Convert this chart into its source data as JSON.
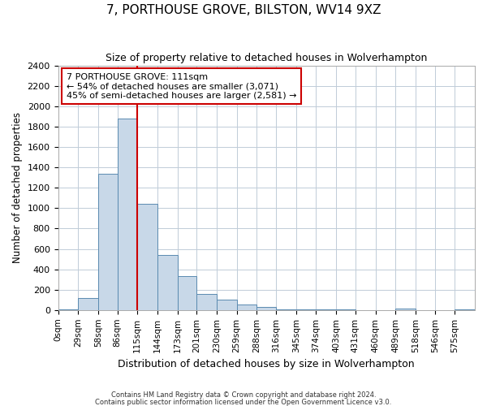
{
  "title": "7, PORTHOUSE GROVE, BILSTON, WV14 9XZ",
  "subtitle": "Size of property relative to detached houses in Wolverhampton",
  "xlabel": "Distribution of detached houses by size in Wolverhampton",
  "ylabel": "Number of detached properties",
  "bin_labels": [
    "0sqm",
    "29sqm",
    "58sqm",
    "86sqm",
    "115sqm",
    "144sqm",
    "173sqm",
    "201sqm",
    "230sqm",
    "259sqm",
    "288sqm",
    "316sqm",
    "345sqm",
    "374sqm",
    "403sqm",
    "431sqm",
    "460sqm",
    "489sqm",
    "518sqm",
    "546sqm",
    "575sqm"
  ],
  "bin_edges": [
    0,
    29,
    58,
    86,
    115,
    144,
    173,
    201,
    230,
    259,
    288,
    316,
    345,
    374,
    403,
    431,
    460,
    489,
    518,
    546,
    575
  ],
  "bar_heights": [
    10,
    120,
    1340,
    1880,
    1040,
    540,
    335,
    160,
    100,
    55,
    30,
    10,
    10,
    5,
    5,
    2,
    2,
    15,
    2,
    2,
    5
  ],
  "bar_color": "#c8d8e8",
  "bar_edge_color": "#5a8ab0",
  "vline_x": 115,
  "vline_color": "#cc0000",
  "annotation_title": "7 PORTHOUSE GROVE: 111sqm",
  "annotation_line1": "← 54% of detached houses are smaller (3,071)",
  "annotation_line2": "45% of semi-detached houses are larger (2,581) →",
  "annotation_box_color": "#ffffff",
  "annotation_box_edge": "#cc0000",
  "ylim": [
    0,
    2400
  ],
  "yticks": [
    0,
    200,
    400,
    600,
    800,
    1000,
    1200,
    1400,
    1600,
    1800,
    2000,
    2200,
    2400
  ],
  "footer1": "Contains HM Land Registry data © Crown copyright and database right 2024.",
  "footer2": "Contains public sector information licensed under the Open Government Licence v3.0.",
  "bg_color": "#ffffff",
  "grid_color": "#c0ccd8"
}
